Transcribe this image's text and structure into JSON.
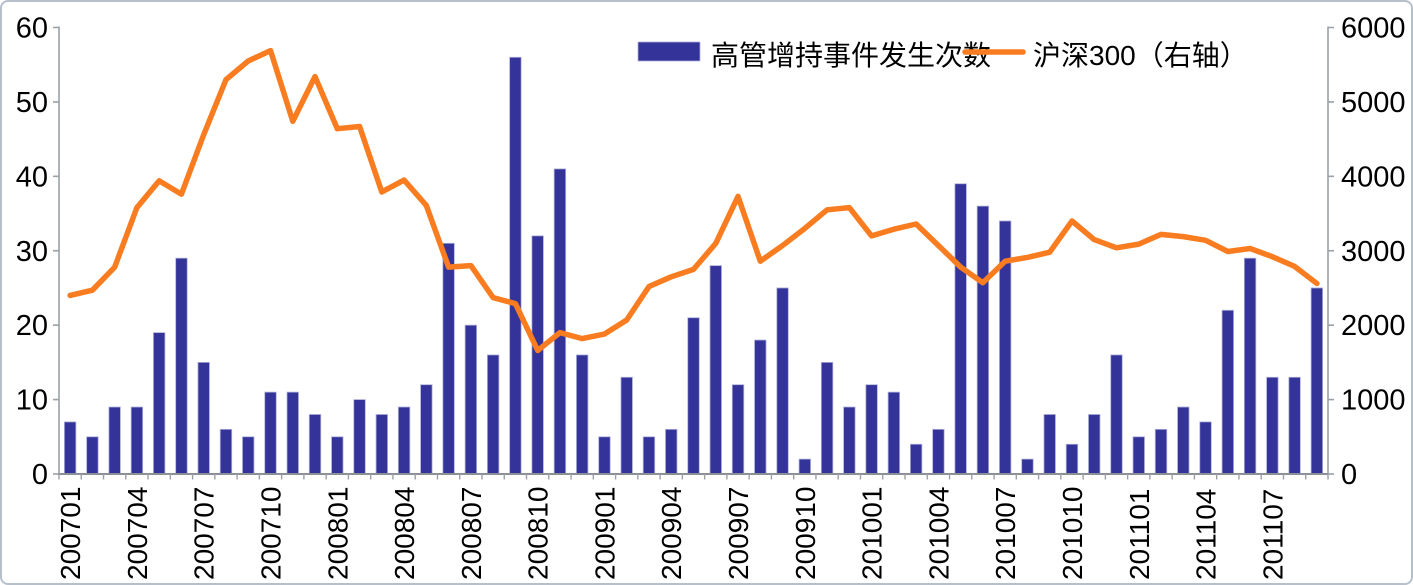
{
  "chart_data": {
    "type": "combo",
    "title": "",
    "x": [
      "200701",
      "200702",
      "200703",
      "200704",
      "200705",
      "200706",
      "200707",
      "200708",
      "200709",
      "200710",
      "200711",
      "200712",
      "200801",
      "200802",
      "200803",
      "200804",
      "200805",
      "200806",
      "200807",
      "200808",
      "200809",
      "200810",
      "200811",
      "200812",
      "200901",
      "200902",
      "200903",
      "200904",
      "200905",
      "200906",
      "200907",
      "200908",
      "200909",
      "200910",
      "200911",
      "200912",
      "201001",
      "201002",
      "201003",
      "201004",
      "201005",
      "201006",
      "201007",
      "201008",
      "201009",
      "201010",
      "201011",
      "201012",
      "201101",
      "201102",
      "201103",
      "201104",
      "201105",
      "201106",
      "201107",
      "201108",
      "201109"
    ],
    "x_tick_label_every": 3,
    "x_tick_labels_shown": [
      "200701",
      "200704",
      "200707",
      "200710",
      "200801",
      "200804",
      "200807",
      "200810",
      "200901",
      "200904",
      "200907",
      "200910",
      "201001",
      "201004",
      "201007",
      "201010",
      "201101",
      "201104",
      "201107"
    ],
    "series": [
      {
        "name": "高管增持事件发生次数",
        "type": "bar",
        "axis": "left",
        "color": "#333399",
        "values": [
          7,
          5,
          9,
          9,
          19,
          29,
          15,
          6,
          5,
          11,
          11,
          8,
          5,
          10,
          8,
          9,
          12,
          31,
          20,
          16,
          56,
          32,
          41,
          16,
          5,
          13,
          5,
          6,
          21,
          28,
          12,
          18,
          25,
          2,
          15,
          9,
          12,
          11,
          4,
          6,
          39,
          36,
          34,
          2,
          8,
          4,
          8,
          16,
          5,
          6,
          9,
          7,
          22,
          29,
          13,
          13,
          25
        ]
      },
      {
        "name": "沪深300（右轴）",
        "type": "line",
        "axis": "right",
        "color": "#F97D20",
        "values": [
          2400,
          2470,
          2780,
          3580,
          3940,
          3760,
          4560,
          5300,
          5550,
          5690,
          4740,
          5340,
          4640,
          4670,
          3790,
          3950,
          3610,
          2780,
          2800,
          2370,
          2290,
          1660,
          1900,
          1820,
          1880,
          2070,
          2520,
          2650,
          2750,
          3100,
          3730,
          2860,
          3070,
          3300,
          3550,
          3580,
          3200,
          3290,
          3360,
          3070,
          2780,
          2570,
          2860,
          2910,
          2980,
          3400,
          3150,
          3040,
          3090,
          3220,
          3190,
          3140,
          2990,
          3030,
          2920,
          2790,
          2560
        ]
      }
    ],
    "left_axis": {
      "min": 0,
      "max": 60,
      "tick_interval": 10,
      "tick_labels": [
        "0",
        "10",
        "20",
        "30",
        "40",
        "50",
        "60"
      ]
    },
    "right_axis": {
      "min": 0,
      "max": 6000,
      "tick_interval": 1000,
      "tick_labels": [
        "0",
        "1000",
        "2000",
        "3000",
        "4000",
        "5000",
        "6000"
      ]
    },
    "legend_position": "top-center",
    "grid": false
  },
  "legend": {
    "bar_label": "高管增持事件发生次数",
    "line_label": "沪深300（右轴）"
  },
  "colors": {
    "bar": "#333399",
    "bar_edge": "#aeb0d8",
    "line": "#F97D20",
    "axis": "#9aa0a6",
    "bottom_axis": "#8a9096",
    "text": "#000000",
    "background": "#ffffff",
    "frame_border": "#b7c0ca"
  }
}
